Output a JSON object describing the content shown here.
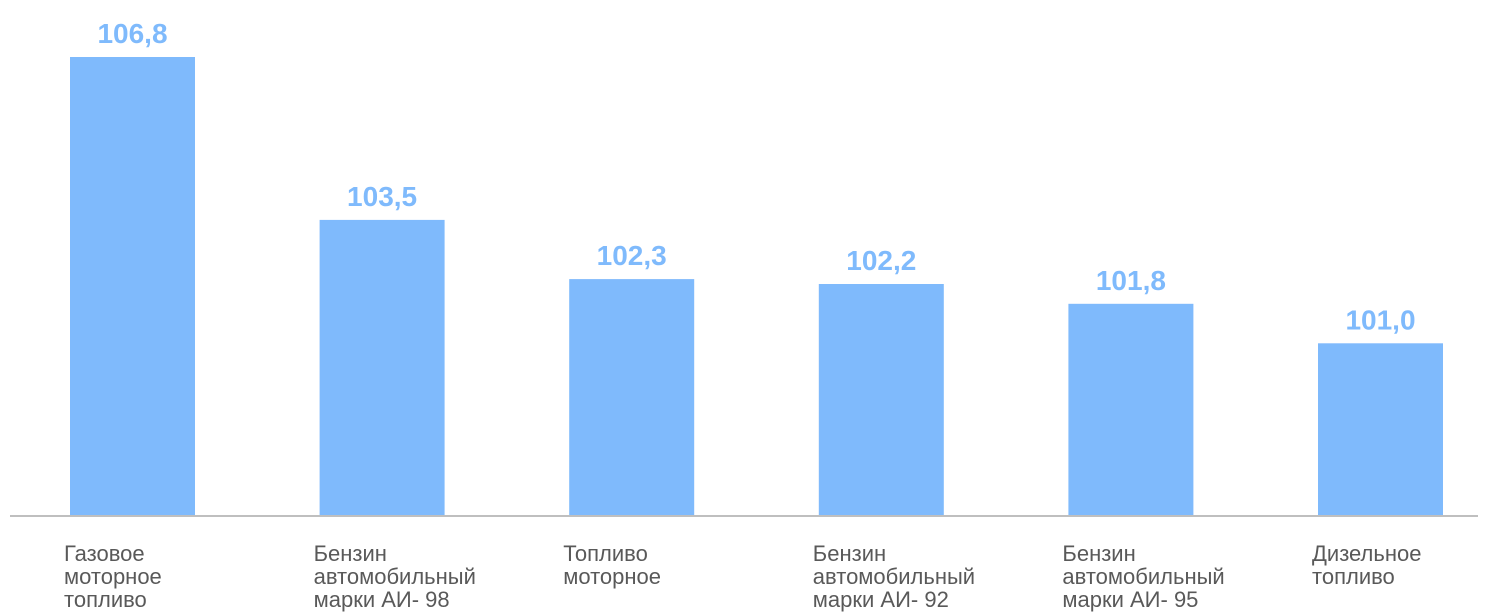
{
  "chart_data": {
    "type": "bar",
    "categories": [
      [
        "Газовое",
        "моторное",
        "топливо"
      ],
      [
        "Бензин",
        "автомобильный",
        "марки АИ- 98"
      ],
      [
        "Топливо",
        "моторное"
      ],
      [
        "Бензин",
        "автомобильный",
        "марки АИ- 92"
      ],
      [
        "Бензин",
        "автомобильный",
        "марки АИ- 95"
      ],
      [
        "Дизельное",
        "топливо"
      ]
    ],
    "values": [
      106.8,
      103.5,
      102.3,
      102.2,
      101.8,
      101.0
    ],
    "value_labels": [
      "106,8",
      "103,5",
      "102,3",
      "102,2",
      "101,8",
      "101,0"
    ],
    "title": "",
    "xlabel": "",
    "ylabel": "",
    "ylim": [
      97.5,
      106.8
    ],
    "grid": false,
    "legend": "none",
    "colors": {
      "bar": "#7fbafc",
      "value_label": "#7fbafc",
      "axis": "#bfbfbf",
      "category_label": "#595959"
    }
  }
}
